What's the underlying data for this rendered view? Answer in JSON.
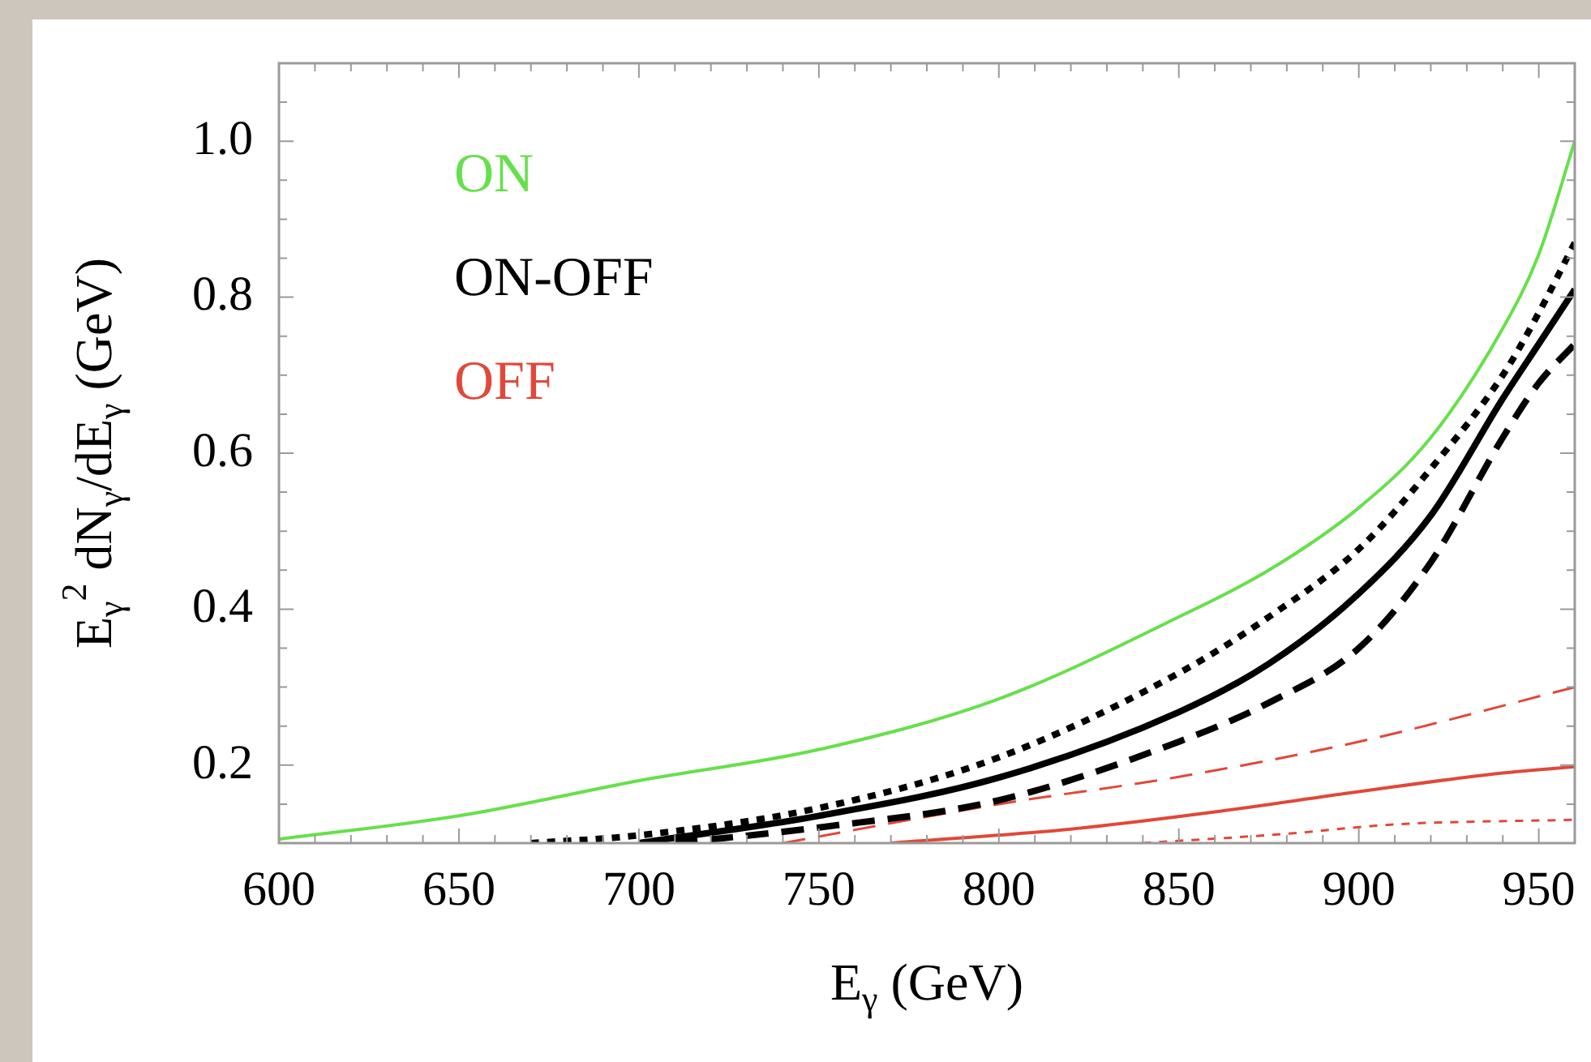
{
  "chart_data": {
    "type": "line",
    "xlabel": "E$_{γ}$ (GeV)",
    "ylabel": "E$_{γ}$$^{2}$ dN$_{γ}$/dE$_{γ}$ (GeV)",
    "xlim": [
      600,
      960
    ],
    "ylim": [
      0.1,
      1.1
    ],
    "xticks": [
      600,
      {
        "value": 610,
        "label": null
      },
      {
        "value": 620,
        "label": null
      },
      {
        "value": 630,
        "label": null
      },
      {
        "value": 640,
        "label": null
      },
      650,
      {
        "value": 660,
        "label": null
      },
      {
        "value": 670,
        "label": null
      },
      {
        "value": 680,
        "label": null
      },
      {
        "value": 690,
        "label": null
      },
      700,
      {
        "value": 710,
        "label": null
      },
      {
        "value": 720,
        "label": null
      },
      {
        "value": 730,
        "label": null
      },
      {
        "value": 740,
        "label": null
      },
      750,
      {
        "value": 760,
        "label": null
      },
      {
        "value": 770,
        "label": null
      },
      {
        "value": 780,
        "label": null
      },
      {
        "value": 790,
        "label": null
      },
      800,
      {
        "value": 810,
        "label": null
      },
      {
        "value": 820,
        "label": null
      },
      {
        "value": 830,
        "label": null
      },
      {
        "value": 840,
        "label": null
      },
      850,
      {
        "value": 860,
        "label": null
      },
      {
        "value": 870,
        "label": null
      },
      {
        "value": 880,
        "label": null
      },
      {
        "value": 890,
        "label": null
      },
      900,
      {
        "value": 910,
        "label": null
      },
      {
        "value": 920,
        "label": null
      },
      {
        "value": 930,
        "label": null
      },
      {
        "value": 940,
        "label": null
      },
      950
    ],
    "yticks": [
      {
        "value": 0.15,
        "label": null
      },
      {
        "value": 0.2,
        "label": "0.2"
      },
      {
        "value": 0.25,
        "label": null
      },
      {
        "value": 0.3,
        "label": null
      },
      {
        "value": 0.35,
        "label": null
      },
      {
        "value": 0.4,
        "label": "0.4"
      },
      {
        "value": 0.45,
        "label": null
      },
      {
        "value": 0.5,
        "label": null
      },
      {
        "value": 0.55,
        "label": null
      },
      {
        "value": 0.6,
        "label": "0.6"
      },
      {
        "value": 0.65,
        "label": null
      },
      {
        "value": 0.7,
        "label": null
      },
      {
        "value": 0.75,
        "label": null
      },
      {
        "value": 0.8,
        "label": "0.8"
      },
      {
        "value": 0.85,
        "label": null
      },
      {
        "value": 0.9,
        "label": null
      },
      {
        "value": 0.95,
        "label": null
      },
      {
        "value": 1.0,
        "label": "1.0"
      },
      {
        "value": 1.05,
        "label": null
      }
    ],
    "grid": false,
    "legend": "top left",
    "marker": "none",
    "series": [
      {
        "name": "ON",
        "color": "#66e04a",
        "line_style": "solid",
        "x": [
          600,
          650,
          700,
          750,
          800,
          850,
          875,
          900,
          920,
          940,
          950,
          960
        ],
        "values": [
          0.105,
          0.135,
          0.18,
          0.22,
          0.285,
          0.39,
          0.45,
          0.53,
          0.62,
          0.76,
          0.855,
          1.0
        ]
      },
      {
        "name": "ON-OFF",
        "color": "#000000",
        "line_style": "solid",
        "x": [
          700,
          750,
          800,
          850,
          875,
          900,
          920,
          940,
          950,
          960
        ],
        "values": [
          0.1,
          0.135,
          0.184,
          0.268,
          0.33,
          0.42,
          0.52,
          0.67,
          0.74,
          0.81
        ]
      },
      {
        "color": "#000000",
        "line_style": "dotted",
        "x": [
          670,
          700,
          750,
          800,
          850,
          875,
          900,
          920,
          940,
          950,
          960
        ],
        "values": [
          0.1,
          0.11,
          0.145,
          0.21,
          0.318,
          0.39,
          0.477,
          0.58,
          0.7,
          0.78,
          0.87
        ]
      },
      {
        "color": "#000000",
        "line_style": "dashed",
        "x": [
          710,
          750,
          800,
          850,
          875,
          900,
          920,
          940,
          950,
          960
        ],
        "values": [
          0.1,
          0.12,
          0.155,
          0.23,
          0.28,
          0.35,
          0.46,
          0.62,
          0.69,
          0.74
        ]
      },
      {
        "name": "OFF",
        "color": "#e0483a",
        "line_style": "solid",
        "x": [
          770,
          820,
          860,
          900,
          940,
          960
        ],
        "values": [
          0.1,
          0.118,
          0.14,
          0.166,
          0.19,
          0.198
        ]
      },
      {
        "color": "#e0483a",
        "line_style": "dashed",
        "x": [
          740,
          800,
          850,
          900,
          960
        ],
        "values": [
          0.1,
          0.15,
          0.185,
          0.23,
          0.3
        ]
      },
      {
        "color": "#e0483a",
        "line_style": "dotted",
        "x": [
          840,
          880,
          910,
          960
        ],
        "values": [
          0.1,
          0.112,
          0.124,
          0.13
        ]
      }
    ]
  }
}
